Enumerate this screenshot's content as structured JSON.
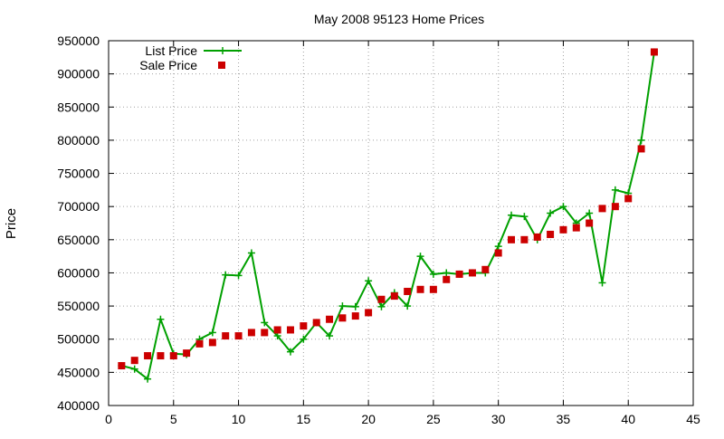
{
  "chart_data": {
    "type": "line",
    "title": "May 2008 95123 Home Prices",
    "xlabel": "",
    "ylabel": "Price",
    "xlim": [
      0,
      45
    ],
    "ylim": [
      400000,
      950000
    ],
    "xticks": [
      0,
      5,
      10,
      15,
      20,
      25,
      30,
      35,
      40,
      45
    ],
    "yticks": [
      400000,
      450000,
      500000,
      550000,
      600000,
      650000,
      700000,
      750000,
      800000,
      850000,
      900000,
      950000
    ],
    "grid": true,
    "legend_position": "top-left",
    "series": [
      {
        "name": "List Price",
        "style": "line+cross",
        "color": "#00a000",
        "x": [
          1,
          2,
          3,
          4,
          5,
          6,
          7,
          8,
          9,
          10,
          11,
          12,
          13,
          14,
          15,
          16,
          17,
          18,
          19,
          20,
          21,
          22,
          23,
          24,
          25,
          26,
          27,
          28,
          29,
          30,
          31,
          32,
          33,
          34,
          35,
          36,
          37,
          38,
          39,
          40,
          41,
          42
        ],
        "y": [
          460000,
          455000,
          440000,
          530000,
          478000,
          477000,
          500000,
          510000,
          597000,
          596000,
          630000,
          525000,
          505000,
          481000,
          500000,
          525000,
          505000,
          550000,
          549000,
          588000,
          549000,
          570000,
          550000,
          625000,
          598000,
          600000,
          598000,
          600000,
          600000,
          640000,
          687000,
          685000,
          650000,
          690000,
          700000,
          675000,
          690000,
          585000,
          725000,
          720000,
          800000,
          933000
        ]
      },
      {
        "name": "Sale Price",
        "style": "square-markers",
        "color": "#cc0000",
        "x": [
          1,
          2,
          3,
          4,
          5,
          6,
          7,
          8,
          9,
          10,
          11,
          12,
          13,
          14,
          15,
          16,
          17,
          18,
          19,
          20,
          21,
          22,
          23,
          24,
          25,
          26,
          27,
          28,
          29,
          30,
          31,
          32,
          33,
          34,
          35,
          36,
          37,
          38,
          39,
          40,
          41,
          42
        ],
        "y": [
          460000,
          468000,
          475000,
          475000,
          475000,
          479000,
          493000,
          495000,
          505000,
          505000,
          510000,
          510000,
          514000,
          514000,
          520000,
          525000,
          530000,
          532000,
          535000,
          540000,
          560000,
          565000,
          572000,
          575000,
          575000,
          590000,
          598000,
          600000,
          605000,
          630000,
          650000,
          650000,
          654000,
          658000,
          665000,
          668000,
          675000,
          697000,
          700000,
          712000,
          787000,
          933000
        ]
      }
    ]
  }
}
